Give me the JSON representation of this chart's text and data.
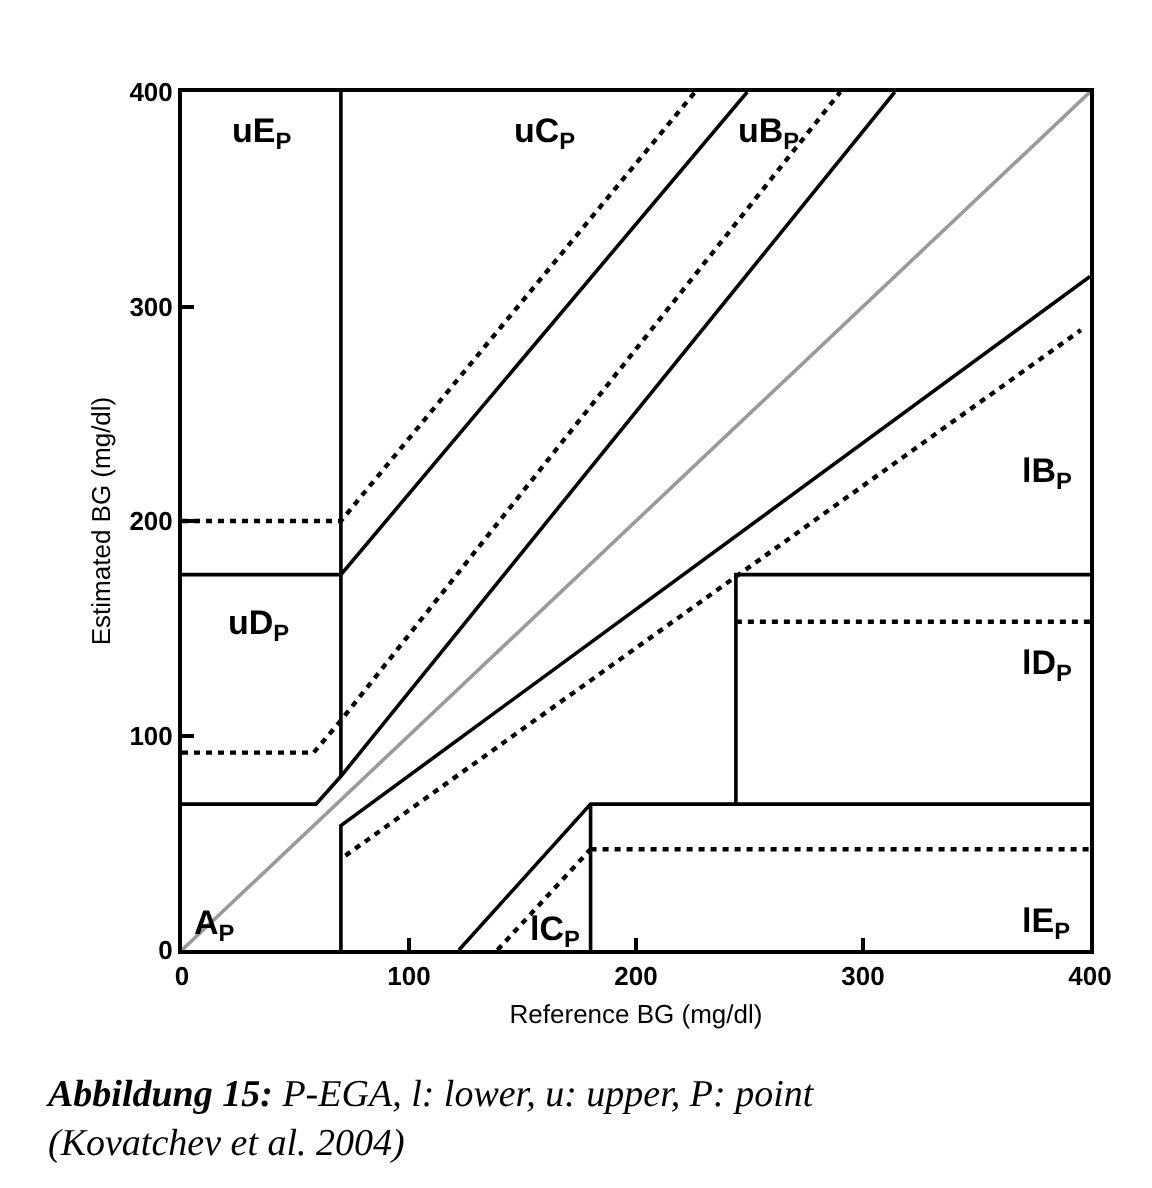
{
  "chart_data": {
    "type": "line",
    "xlabel": "Reference BG (mg/dl)",
    "ylabel": "Estimated BG (mg/dl)",
    "xlim": [
      0,
      400
    ],
    "ylim": [
      0,
      400
    ],
    "xticks": [
      0,
      100,
      200,
      300,
      400
    ],
    "yticks": [
      0,
      100,
      200,
      300,
      400
    ],
    "marker": "none",
    "series": [
      {
        "color": "#9a9a9a",
        "line_style": "solid",
        "x": [
          0,
          400
        ],
        "values": [
          0,
          400
        ]
      },
      {
        "color": "#000000",
        "line_style": "solid",
        "x": [
          0,
          70,
          249
        ],
        "values": [
          175,
          175,
          400
        ]
      },
      {
        "color": "#000000",
        "line_style": "dotted",
        "x": [
          0,
          70,
          226
        ],
        "values": [
          200,
          200,
          400
        ]
      },
      {
        "color": "#000000",
        "line_style": "solid",
        "x": [
          70,
          70
        ],
        "values": [
          81,
          400
        ]
      },
      {
        "color": "#000000",
        "line_style": "solid",
        "x": [
          0,
          59,
          70,
          314
        ],
        "values": [
          68,
          68,
          81,
          400
        ]
      },
      {
        "color": "#000000",
        "line_style": "dotted",
        "x": [
          0,
          58,
          70,
          290
        ],
        "values": [
          92,
          92,
          107,
          400
        ]
      },
      {
        "color": "#000000",
        "line_style": "solid",
        "x": [
          70,
          70,
          400
        ],
        "values": [
          0,
          58,
          314
        ]
      },
      {
        "color": "#000000",
        "line_style": "dotted",
        "x": [
          72,
          396
        ],
        "values": [
          44,
          289
        ]
      },
      {
        "color": "#000000",
        "line_style": "solid",
        "x": [
          244,
          244,
          400
        ],
        "values": [
          68,
          175,
          175
        ]
      },
      {
        "color": "#000000",
        "line_style": "dotted",
        "x": [
          244,
          400
        ],
        "values": [
          153,
          153
        ]
      },
      {
        "color": "#000000",
        "line_style": "solid",
        "x": [
          122,
          180,
          400
        ],
        "values": [
          0,
          68,
          68
        ]
      },
      {
        "color": "#000000",
        "line_style": "solid",
        "x": [
          180,
          180
        ],
        "values": [
          0,
          68
        ]
      },
      {
        "color": "#000000",
        "line_style": "dotted",
        "x": [
          139,
          180
        ],
        "values": [
          0,
          47
        ]
      },
      {
        "color": "#000000",
        "line_style": "dotted",
        "x": [
          180,
          400
        ],
        "values": [
          47,
          47
        ]
      }
    ],
    "annotations": [
      "uE$_{P}$",
      "uC$_{P}$",
      "uB$_{P}$",
      "uD$_{P}$",
      "A$_{P}$",
      "lC$_{P}$",
      "lB$_{P}$",
      "lD$_{P}$",
      "lE$_{P}$",
      "Abbildung 15: P-EGA, l: lower, u: upper, P: point\n(Kovatchev et al. 2004)"
    ]
  }
}
